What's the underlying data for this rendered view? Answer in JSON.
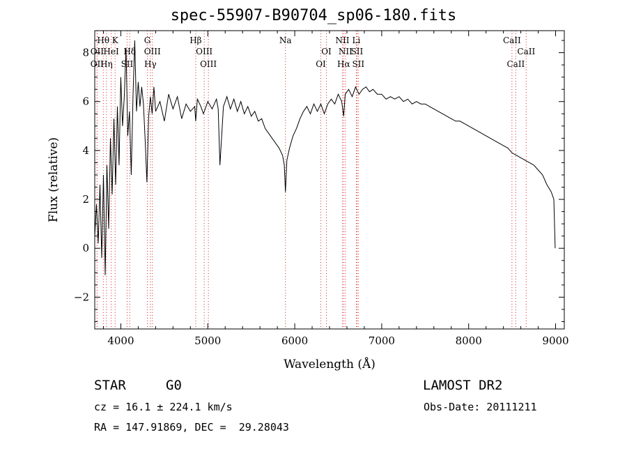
{
  "chart_data": {
    "type": "line",
    "title": "spec-55907-B90704_sp06-180.fits",
    "xlabel": "Wavelength (Å)",
    "ylabel": "Flux (relative)",
    "xlim": [
      3700,
      9100
    ],
    "ylim": [
      -3.3,
      8.9
    ],
    "x_ticks": [
      4000,
      5000,
      6000,
      7000,
      8000,
      9000
    ],
    "y_ticks": [
      -2,
      0,
      2,
      4,
      6,
      8
    ],
    "grid": false,
    "legend": "none",
    "series": [
      {
        "points": [
          [
            3700,
            0.5
          ],
          [
            3720,
            1.8
          ],
          [
            3740,
            0.2
          ],
          [
            3760,
            2.6
          ],
          [
            3780,
            -0.4
          ],
          [
            3800,
            3.0
          ],
          [
            3820,
            -1.1
          ],
          [
            3840,
            3.4
          ],
          [
            3860,
            0.8
          ],
          [
            3880,
            4.5
          ],
          [
            3900,
            2.2
          ],
          [
            3920,
            5.3
          ],
          [
            3940,
            2.6
          ],
          [
            3960,
            5.8
          ],
          [
            3980,
            3.4
          ],
          [
            4000,
            7.0
          ],
          [
            4020,
            5.0
          ],
          [
            4040,
            6.2
          ],
          [
            4060,
            8.2
          ],
          [
            4080,
            4.6
          ],
          [
            4100,
            5.6
          ],
          [
            4120,
            3.0
          ],
          [
            4140,
            6.2
          ],
          [
            4160,
            8.5
          ],
          [
            4180,
            5.6
          ],
          [
            4200,
            6.8
          ],
          [
            4220,
            5.8
          ],
          [
            4240,
            6.6
          ],
          [
            4260,
            5.9
          ],
          [
            4280,
            4.4
          ],
          [
            4300,
            2.7
          ],
          [
            4320,
            5.4
          ],
          [
            4340,
            6.2
          ],
          [
            4360,
            5.5
          ],
          [
            4380,
            6.6
          ],
          [
            4400,
            5.6
          ],
          [
            4450,
            6.0
          ],
          [
            4500,
            5.2
          ],
          [
            4550,
            6.3
          ],
          [
            4600,
            5.7
          ],
          [
            4650,
            6.2
          ],
          [
            4700,
            5.3
          ],
          [
            4750,
            5.9
          ],
          [
            4800,
            5.6
          ],
          [
            4850,
            5.8
          ],
          [
            4861,
            5.2
          ],
          [
            4880,
            6.1
          ],
          [
            4920,
            5.8
          ],
          [
            4950,
            5.5
          ],
          [
            5000,
            6.0
          ],
          [
            5050,
            5.7
          ],
          [
            5100,
            6.1
          ],
          [
            5120,
            5.7
          ],
          [
            5140,
            3.4
          ],
          [
            5180,
            5.8
          ],
          [
            5220,
            6.2
          ],
          [
            5260,
            5.7
          ],
          [
            5300,
            6.1
          ],
          [
            5340,
            5.6
          ],
          [
            5380,
            6.0
          ],
          [
            5420,
            5.5
          ],
          [
            5460,
            5.8
          ],
          [
            5500,
            5.4
          ],
          [
            5540,
            5.6
          ],
          [
            5580,
            5.2
          ],
          [
            5620,
            5.3
          ],
          [
            5660,
            4.9
          ],
          [
            5700,
            4.7
          ],
          [
            5740,
            4.5
          ],
          [
            5780,
            4.3
          ],
          [
            5820,
            4.1
          ],
          [
            5860,
            3.8
          ],
          [
            5880,
            3.4
          ],
          [
            5893,
            2.3
          ],
          [
            5910,
            3.6
          ],
          [
            5940,
            4.1
          ],
          [
            5980,
            4.6
          ],
          [
            6020,
            4.9
          ],
          [
            6060,
            5.3
          ],
          [
            6100,
            5.6
          ],
          [
            6140,
            5.8
          ],
          [
            6180,
            5.5
          ],
          [
            6220,
            5.9
          ],
          [
            6260,
            5.6
          ],
          [
            6300,
            5.9
          ],
          [
            6340,
            5.5
          ],
          [
            6380,
            5.9
          ],
          [
            6420,
            6.1
          ],
          [
            6460,
            5.9
          ],
          [
            6500,
            6.3
          ],
          [
            6540,
            6.0
          ],
          [
            6563,
            5.4
          ],
          [
            6580,
            6.3
          ],
          [
            6620,
            6.5
          ],
          [
            6660,
            6.2
          ],
          [
            6700,
            6.6
          ],
          [
            6740,
            6.3
          ],
          [
            6780,
            6.5
          ],
          [
            6820,
            6.6
          ],
          [
            6860,
            6.4
          ],
          [
            6900,
            6.5
          ],
          [
            6950,
            6.3
          ],
          [
            7000,
            6.3
          ],
          [
            7050,
            6.1
          ],
          [
            7100,
            6.2
          ],
          [
            7150,
            6.1
          ],
          [
            7200,
            6.2
          ],
          [
            7250,
            6.0
          ],
          [
            7300,
            6.1
          ],
          [
            7350,
            5.9
          ],
          [
            7400,
            6.0
          ],
          [
            7450,
            5.9
          ],
          [
            7500,
            5.9
          ],
          [
            7550,
            5.8
          ],
          [
            7600,
            5.7
          ],
          [
            7650,
            5.6
          ],
          [
            7700,
            5.5
          ],
          [
            7750,
            5.4
          ],
          [
            7800,
            5.3
          ],
          [
            7850,
            5.2
          ],
          [
            7900,
            5.2
          ],
          [
            7950,
            5.1
          ],
          [
            8000,
            5.0
          ],
          [
            8050,
            4.9
          ],
          [
            8100,
            4.8
          ],
          [
            8150,
            4.7
          ],
          [
            8200,
            4.6
          ],
          [
            8250,
            4.5
          ],
          [
            8300,
            4.4
          ],
          [
            8350,
            4.3
          ],
          [
            8400,
            4.2
          ],
          [
            8450,
            4.1
          ],
          [
            8500,
            3.9
          ],
          [
            8550,
            3.8
          ],
          [
            8600,
            3.7
          ],
          [
            8650,
            3.6
          ],
          [
            8700,
            3.5
          ],
          [
            8750,
            3.4
          ],
          [
            8800,
            3.2
          ],
          [
            8850,
            3.0
          ],
          [
            8900,
            2.6
          ],
          [
            8950,
            2.3
          ],
          [
            8980,
            2.0
          ],
          [
            8995,
            0.0
          ]
        ]
      }
    ],
    "line_markers": [
      {
        "label": "Hθ",
        "x": 3798,
        "row": 0
      },
      {
        "label": "OII",
        "x": 3727,
        "row": 1
      },
      {
        "label": "OII",
        "x": 3727,
        "row": 2
      },
      {
        "label": "HeI",
        "x": 3889,
        "row": 1
      },
      {
        "label": "Hη",
        "x": 3835,
        "row": 2
      },
      {
        "label": "K",
        "x": 3934,
        "row": 0
      },
      {
        "label": "Hδ",
        "x": 4102,
        "row": 1
      },
      {
        "label": "SII",
        "x": 4072,
        "row": 2
      },
      {
        "label": "G",
        "x": 4305,
        "row": 0
      },
      {
        "label": "OIII",
        "x": 4363,
        "row": 1
      },
      {
        "label": "Hγ",
        "x": 4340,
        "row": 2
      },
      {
        "label": "Hβ",
        "x": 4861,
        "row": 0
      },
      {
        "label": "OIII",
        "x": 4959,
        "row": 1
      },
      {
        "label": "OIII",
        "x": 5007,
        "row": 2
      },
      {
        "label": "Na",
        "x": 5893,
        "row": 0
      },
      {
        "label": "OI",
        "x": 6364,
        "row": 1
      },
      {
        "label": "OI",
        "x": 6300,
        "row": 2
      },
      {
        "label": "NII",
        "x": 6548,
        "row": 0
      },
      {
        "label": "NII",
        "x": 6583,
        "row": 1
      },
      {
        "label": "Hα",
        "x": 6563,
        "row": 2
      },
      {
        "label": "Li",
        "x": 6708,
        "row": 0
      },
      {
        "label": "SII",
        "x": 6716,
        "row": 1
      },
      {
        "label": "SII",
        "x": 6731,
        "row": 2
      },
      {
        "label": "CaII",
        "x": 8498,
        "row": 0
      },
      {
        "label": "CaII",
        "x": 8662,
        "row": 1
      },
      {
        "label": "CaII",
        "x": 8542,
        "row": 2
      }
    ],
    "marker_line_color": "#d62728"
  },
  "info": {
    "object_class": "STAR",
    "subclass": "G0",
    "survey": "LAMOST DR2",
    "cz": "cz = 16.1 ± 224.1 km/s",
    "obs_date": "Obs-Date: 20111211",
    "coords": "RA = 147.91869, DEC =  29.28043"
  }
}
